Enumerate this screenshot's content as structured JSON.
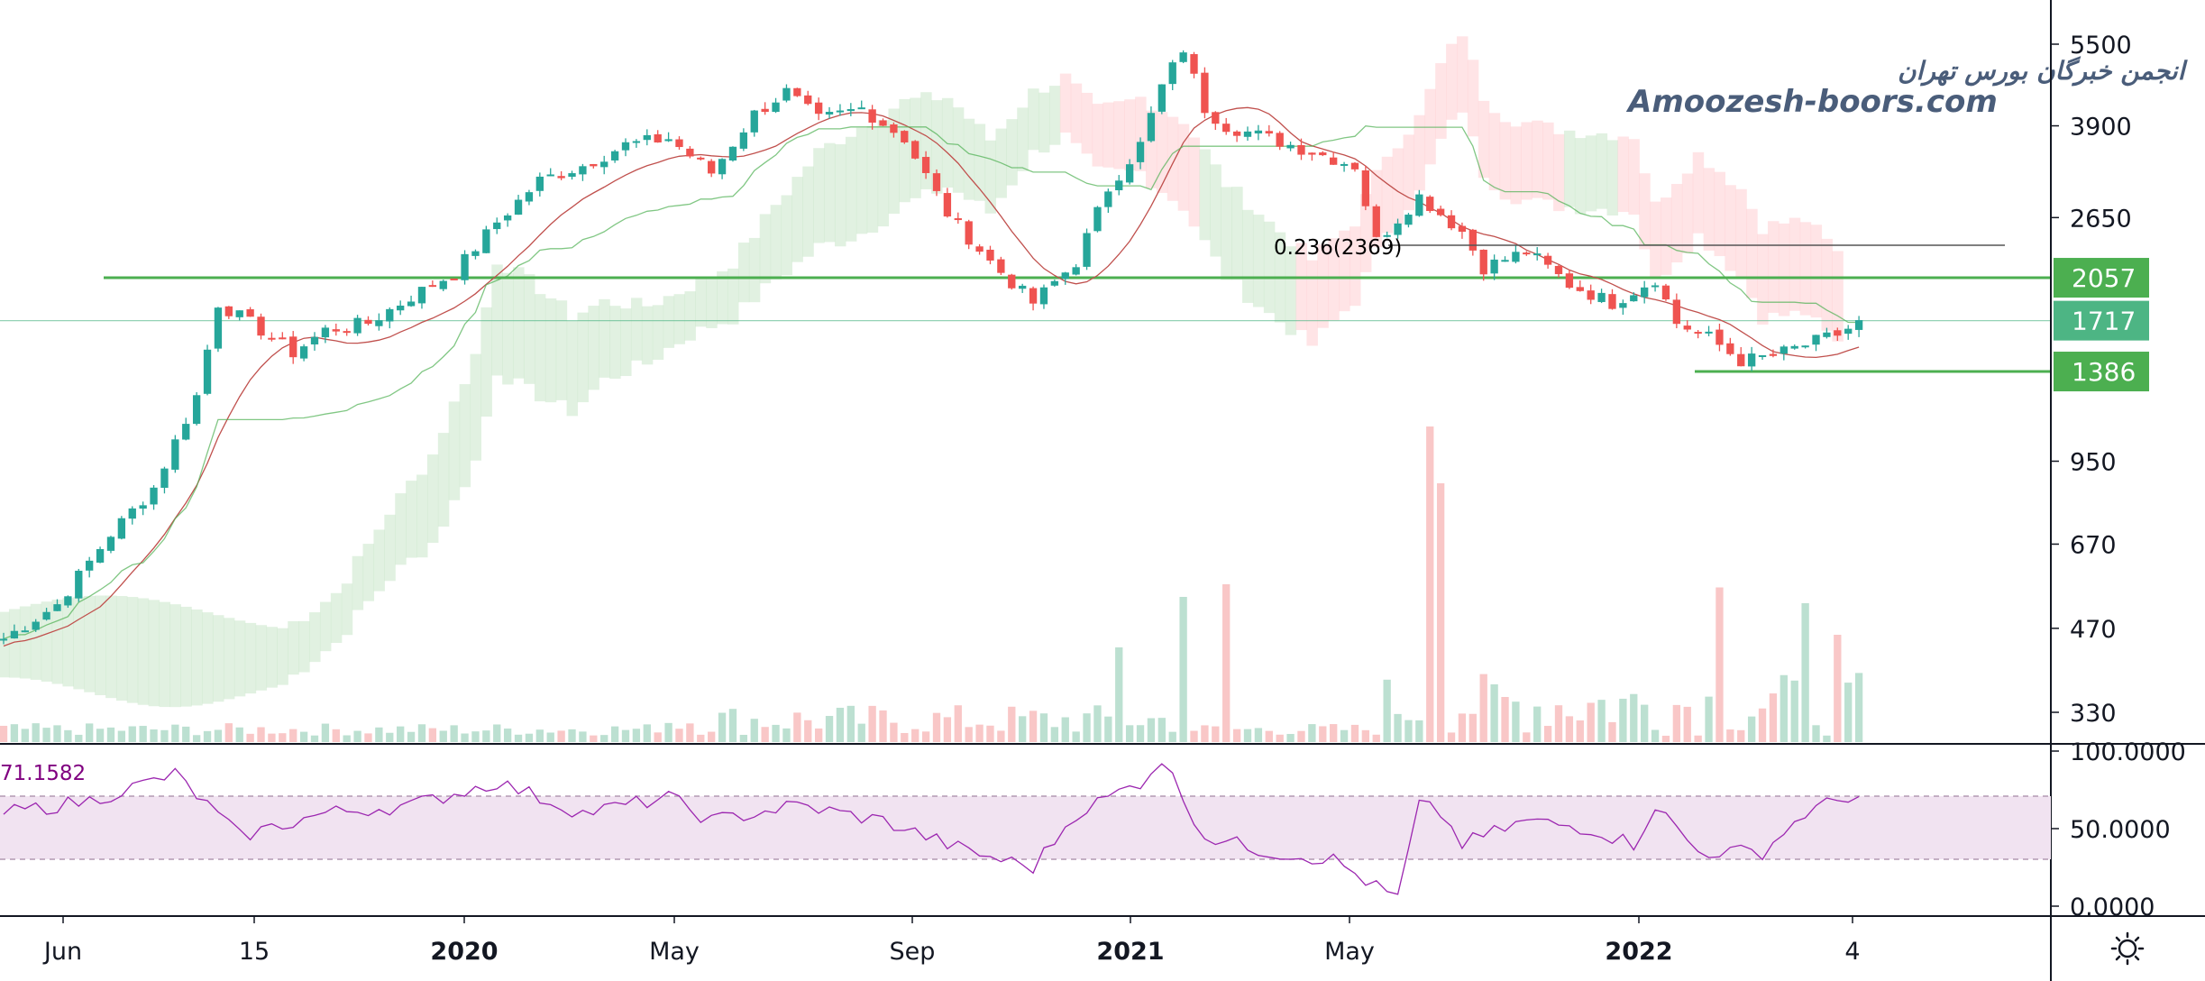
{
  "chart_data": {
    "type": "candlestick",
    "price_axis": {
      "scale": "log",
      "ticks": [
        "5500",
        "3900",
        "2650",
        "1717",
        "950",
        "670",
        "470",
        "330"
      ]
    },
    "time_axis": {
      "ticks": [
        {
          "label": "Jun",
          "major": false
        },
        {
          "label": "15",
          "major": false
        },
        {
          "label": "2020",
          "major": true
        },
        {
          "label": "May",
          "major": false
        },
        {
          "label": "Sep",
          "major": false
        },
        {
          "label": "2021",
          "major": true
        },
        {
          "label": "May",
          "major": false
        },
        {
          "label": "2022",
          "major": true
        },
        {
          "label": "4",
          "major": false
        }
      ]
    },
    "levels": [
      {
        "value": 2057,
        "label": "2057",
        "color": "#4caf50"
      },
      {
        "value": 1717,
        "label": "1717",
        "color": "#4db584"
      },
      {
        "value": 1386,
        "label": "1386",
        "color": "#4caf50"
      }
    ],
    "fib_label": "0.236(2369)",
    "price_path_key_points": [
      [
        0,
        450
      ],
      [
        5,
        520
      ],
      [
        10,
        700
      ],
      [
        14,
        850
      ],
      [
        18,
        1250
      ],
      [
        20,
        1850
      ],
      [
        24,
        1650
      ],
      [
        27,
        1500
      ],
      [
        30,
        1650
      ],
      [
        34,
        1700
      ],
      [
        38,
        1900
      ],
      [
        42,
        2100
      ],
      [
        46,
        2600
      ],
      [
        50,
        3100
      ],
      [
        54,
        3300
      ],
      [
        58,
        3600
      ],
      [
        62,
        3700
      ],
      [
        66,
        3200
      ],
      [
        70,
        4100
      ],
      [
        73,
        4500
      ],
      [
        76,
        4000
      ],
      [
        80,
        4200
      ],
      [
        84,
        3700
      ],
      [
        88,
        2700
      ],
      [
        92,
        2200
      ],
      [
        96,
        1850
      ],
      [
        100,
        2200
      ],
      [
        103,
        3000
      ],
      [
        106,
        3600
      ],
      [
        108,
        4600
      ],
      [
        110,
        5400
      ],
      [
        112,
        4200
      ],
      [
        114,
        3900
      ],
      [
        118,
        3700
      ],
      [
        122,
        3500
      ],
      [
        126,
        3300
      ],
      [
        128,
        2400
      ],
      [
        132,
        2900
      ],
      [
        136,
        2500
      ],
      [
        138,
        2150
      ],
      [
        142,
        2300
      ],
      [
        146,
        2000
      ],
      [
        150,
        1850
      ],
      [
        154,
        2050
      ],
      [
        156,
        1700
      ],
      [
        159,
        1600
      ],
      [
        162,
        1450
      ],
      [
        165,
        1480
      ],
      [
        168,
        1550
      ],
      [
        171,
        1620
      ],
      [
        173,
        1700
      ]
    ],
    "volume_spikes": [
      {
        "i": 133,
        "v": 1.0
      },
      {
        "i": 134,
        "v": 0.82
      },
      {
        "i": 110,
        "v": 0.46
      },
      {
        "i": 114,
        "v": 0.5
      },
      {
        "i": 104,
        "v": 0.3
      },
      {
        "i": 160,
        "v": 0.49
      },
      {
        "i": 168,
        "v": 0.44
      },
      {
        "i": 171,
        "v": 0.34
      }
    ],
    "rsi": {
      "value_label": "71.1582",
      "ticks": [
        "100.0000",
        "50.0000",
        "0.0000"
      ],
      "band": [
        30,
        70
      ],
      "key_points": [
        [
          0,
          60
        ],
        [
          8,
          68
        ],
        [
          16,
          85
        ],
        [
          22,
          45
        ],
        [
          30,
          60
        ],
        [
          38,
          65
        ],
        [
          46,
          80
        ],
        [
          54,
          60
        ],
        [
          62,
          70
        ],
        [
          66,
          55
        ],
        [
          74,
          65
        ],
        [
          82,
          55
        ],
        [
          90,
          35
        ],
        [
          96,
          25
        ],
        [
          100,
          60
        ],
        [
          106,
          80
        ],
        [
          108,
          95
        ],
        [
          110,
          70
        ],
        [
          112,
          45
        ],
        [
          118,
          35
        ],
        [
          124,
          30
        ],
        [
          128,
          12
        ],
        [
          130,
          5
        ],
        [
          132,
          65
        ],
        [
          134,
          60
        ],
        [
          136,
          40
        ],
        [
          142,
          55
        ],
        [
          148,
          50
        ],
        [
          152,
          40
        ],
        [
          154,
          65
        ],
        [
          158,
          35
        ],
        [
          164,
          35
        ],
        [
          168,
          60
        ],
        [
          172,
          71
        ]
      ]
    }
  },
  "watermark": {
    "line1": "انجمن خبرگان بورس تهران",
    "line2": "Amoozesh-boors.com"
  },
  "colors": {
    "up": "#26a69a",
    "down": "#ef5350",
    "cloud_green": "#c8e6c9",
    "cloud_red": "#ffcdd2",
    "rsi_line": "#9c27b0",
    "rsi_band": "#f3e5f5"
  },
  "settings_icon": "sun-gear-icon"
}
